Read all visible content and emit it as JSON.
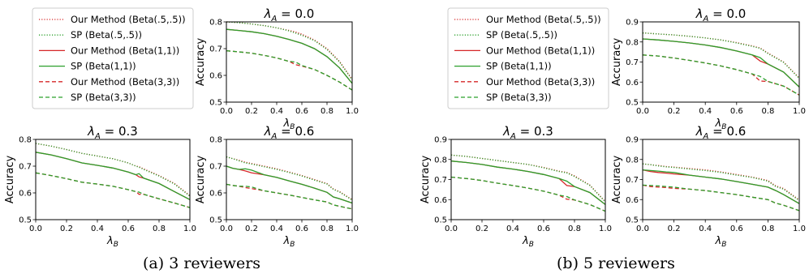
{
  "figure": {
    "captions": [
      "(a) 3 reviewers",
      "(b) 5 reviewers"
    ]
  },
  "legend": {
    "entries": [
      {
        "label": "Our Method (Beta(.5,.5))",
        "color": "#d62728",
        "style": "dotted"
      },
      {
        "label": "SP (Beta(.5,.5))",
        "color": "#2ca02c",
        "style": "dotted"
      },
      {
        "label": "Our Method (Beta(1,1))",
        "color": "#d62728",
        "style": "solid"
      },
      {
        "label": "SP (Beta(1,1))",
        "color": "#2ca02c",
        "style": "solid"
      },
      {
        "label": "Our Method (Beta(3,3))",
        "color": "#d62728",
        "style": "dashed"
      },
      {
        "label": "SP (Beta(3,3))",
        "color": "#2ca02c",
        "style": "dashed"
      }
    ]
  },
  "colors": {
    "our_method": "#d62728",
    "sp": "#2ca02c"
  },
  "chart_data": [
    {
      "type": "line",
      "group": "3 reviewers",
      "title": "λA = 0.0",
      "xlabel": "λB",
      "ylabel": "Accuracy",
      "xlim": [
        0,
        1
      ],
      "ylim": [
        0.5,
        0.8
      ],
      "xticks": [
        "0.0",
        "0.2",
        "0.4",
        "0.6",
        "0.8",
        "1.0"
      ],
      "yticks": [
        "0.5",
        "0.6",
        "0.7",
        "0.8"
      ],
      "x": [
        0,
        0.1,
        0.2,
        0.3,
        0.4,
        0.5,
        0.55,
        0.6,
        0.7,
        0.8,
        0.9,
        1.0
      ],
      "series": [
        {
          "name": "Our Method (Beta(.5,.5))",
          "values": [
            0.8,
            0.797,
            0.792,
            0.786,
            0.778,
            0.768,
            0.762,
            0.754,
            0.732,
            0.7,
            0.652,
            0.585
          ]
        },
        {
          "name": "SP (Beta(.5,.5))",
          "values": [
            0.8,
            0.797,
            0.792,
            0.786,
            0.778,
            0.766,
            0.758,
            0.75,
            0.73,
            0.697,
            0.65,
            0.583
          ]
        },
        {
          "name": "Our Method (Beta(1,1))",
          "values": [
            0.772,
            0.768,
            0.763,
            0.756,
            0.746,
            0.734,
            0.727,
            0.72,
            0.7,
            0.67,
            0.628,
            0.57
          ]
        },
        {
          "name": "SP (Beta(1,1))",
          "values": [
            0.772,
            0.768,
            0.763,
            0.756,
            0.746,
            0.734,
            0.727,
            0.72,
            0.7,
            0.67,
            0.628,
            0.57
          ]
        },
        {
          "name": "Our Method (Beta(3,3))",
          "values": [
            0.692,
            0.688,
            0.683,
            0.675,
            0.665,
            0.652,
            0.64,
            0.635,
            0.622,
            0.6,
            0.575,
            0.545
          ]
        },
        {
          "name": "SP (Beta(3,3))",
          "values": [
            0.692,
            0.688,
            0.683,
            0.675,
            0.665,
            0.652,
            0.65,
            0.637,
            0.622,
            0.6,
            0.575,
            0.545
          ]
        }
      ]
    },
    {
      "type": "line",
      "group": "5 reviewers",
      "title": "λA = 0.0",
      "xlabel": "λB",
      "ylabel": "Accuracy",
      "xlim": [
        0,
        1
      ],
      "ylim": [
        0.5,
        0.9
      ],
      "xticks": [
        "0.0",
        "0.2",
        "0.4",
        "0.6",
        "0.8",
        "1.0"
      ],
      "yticks": [
        "0.5",
        "0.6",
        "0.7",
        "0.8",
        "0.9"
      ],
      "x": [
        0,
        0.1,
        0.2,
        0.3,
        0.4,
        0.5,
        0.6,
        0.7,
        0.75,
        0.8,
        0.9,
        1.0
      ],
      "series": [
        {
          "name": "Our Method (Beta(.5,.5))",
          "values": [
            0.845,
            0.84,
            0.835,
            0.828,
            0.82,
            0.81,
            0.797,
            0.78,
            0.77,
            0.745,
            0.7,
            0.62
          ]
        },
        {
          "name": "SP (Beta(.5,.5))",
          "values": [
            0.845,
            0.84,
            0.835,
            0.828,
            0.82,
            0.81,
            0.795,
            0.778,
            0.768,
            0.742,
            0.698,
            0.618
          ]
        },
        {
          "name": "Our Method (Beta(1,1))",
          "values": [
            0.815,
            0.81,
            0.803,
            0.795,
            0.785,
            0.772,
            0.755,
            0.735,
            0.705,
            0.69,
            0.65,
            0.575
          ]
        },
        {
          "name": "SP (Beta(1,1))",
          "values": [
            0.815,
            0.81,
            0.803,
            0.795,
            0.785,
            0.772,
            0.755,
            0.735,
            0.722,
            0.69,
            0.65,
            0.575
          ]
        },
        {
          "name": "Our Method (Beta(3,3))",
          "values": [
            0.735,
            0.73,
            0.72,
            0.708,
            0.695,
            0.68,
            0.662,
            0.64,
            0.605,
            0.603,
            0.58,
            0.535
          ]
        },
        {
          "name": "SP (Beta(3,3))",
          "values": [
            0.735,
            0.73,
            0.72,
            0.708,
            0.695,
            0.68,
            0.662,
            0.64,
            0.628,
            0.603,
            0.58,
            0.535
          ]
        }
      ]
    },
    {
      "type": "line",
      "group": "3 reviewers",
      "title": "λA = 0.3",
      "xlabel": "λB",
      "ylabel": "Accuracy",
      "xlim": [
        0,
        1
      ],
      "ylim": [
        0.5,
        0.8
      ],
      "xticks": [
        "0.0",
        "0.2",
        "0.4",
        "0.6",
        "0.8",
        "1.0"
      ],
      "yticks": [
        "0.5",
        "0.6",
        "0.7",
        "0.8"
      ],
      "x": [
        0,
        0.1,
        0.2,
        0.3,
        0.4,
        0.5,
        0.6,
        0.65,
        0.67,
        0.7,
        0.8,
        0.9,
        1.0
      ],
      "series": [
        {
          "name": "Our Method (Beta(.5,.5))",
          "values": [
            0.785,
            0.775,
            0.762,
            0.748,
            0.738,
            0.728,
            0.712,
            0.7,
            0.698,
            0.69,
            0.665,
            0.635,
            0.59
          ]
        },
        {
          "name": "SP (Beta(.5,.5))",
          "values": [
            0.785,
            0.775,
            0.762,
            0.748,
            0.738,
            0.728,
            0.712,
            0.7,
            0.696,
            0.688,
            0.663,
            0.633,
            0.588
          ]
        },
        {
          "name": "Our Method (Beta(1,1))",
          "values": [
            0.752,
            0.742,
            0.728,
            0.712,
            0.703,
            0.693,
            0.678,
            0.668,
            0.66,
            0.655,
            0.635,
            0.605,
            0.575
          ]
        },
        {
          "name": "SP (Beta(1,1))",
          "values": [
            0.752,
            0.742,
            0.728,
            0.712,
            0.703,
            0.693,
            0.678,
            0.668,
            0.672,
            0.655,
            0.635,
            0.605,
            0.575
          ]
        },
        {
          "name": "Our Method (Beta(3,3))",
          "values": [
            0.675,
            0.665,
            0.653,
            0.64,
            0.633,
            0.625,
            0.612,
            0.605,
            0.595,
            0.595,
            0.578,
            0.562,
            0.545
          ]
        },
        {
          "name": "SP (Beta(3,3))",
          "values": [
            0.675,
            0.665,
            0.653,
            0.64,
            0.633,
            0.625,
            0.612,
            0.605,
            0.603,
            0.595,
            0.578,
            0.562,
            0.545
          ]
        }
      ]
    },
    {
      "type": "line",
      "group": "3 reviewers",
      "title": "λA = 0.6",
      "xlabel": "λB",
      "ylabel": "Accuracy",
      "xlim": [
        0,
        1
      ],
      "ylim": [
        0.5,
        0.8
      ],
      "xticks": [
        "0.0",
        "0.2",
        "0.4",
        "0.6",
        "0.8",
        "1.0"
      ],
      "yticks": [
        "0.5",
        "0.6",
        "0.7",
        "0.8"
      ],
      "x": [
        0,
        0.05,
        0.1,
        0.15,
        0.2,
        0.3,
        0.4,
        0.5,
        0.6,
        0.7,
        0.8,
        0.85,
        0.9,
        1.0
      ],
      "series": [
        {
          "name": "Our Method (Beta(.5,.5))",
          "values": [
            0.735,
            0.728,
            0.722,
            0.715,
            0.71,
            0.7,
            0.69,
            0.678,
            0.665,
            0.65,
            0.635,
            0.615,
            0.605,
            0.575
          ]
        },
        {
          "name": "SP (Beta(.5,.5))",
          "values": [
            0.735,
            0.728,
            0.72,
            0.712,
            0.708,
            0.698,
            0.688,
            0.676,
            0.663,
            0.648,
            0.633,
            0.613,
            0.603,
            0.573
          ]
        },
        {
          "name": "Our Method (Beta(1,1))",
          "values": [
            0.7,
            0.692,
            0.688,
            0.682,
            0.675,
            0.668,
            0.658,
            0.645,
            0.632,
            0.618,
            0.602,
            0.585,
            0.578,
            0.562
          ]
        },
        {
          "name": "SP (Beta(1,1))",
          "values": [
            0.7,
            0.692,
            0.688,
            0.69,
            0.685,
            0.668,
            0.658,
            0.645,
            0.632,
            0.618,
            0.602,
            0.585,
            0.578,
            0.562
          ]
        },
        {
          "name": "Our Method (Beta(3,3))",
          "values": [
            0.632,
            0.628,
            0.625,
            0.62,
            0.616,
            0.608,
            0.6,
            0.592,
            0.583,
            0.574,
            0.566,
            0.555,
            0.55,
            0.54
          ]
        },
        {
          "name": "SP (Beta(3,3))",
          "values": [
            0.632,
            0.628,
            0.625,
            0.625,
            0.622,
            0.608,
            0.6,
            0.592,
            0.583,
            0.574,
            0.566,
            0.555,
            0.55,
            0.54
          ]
        }
      ]
    },
    {
      "type": "line",
      "group": "5 reviewers",
      "title": "λA = 0.3",
      "xlabel": "λB",
      "ylabel": "Accuracy",
      "xlim": [
        0,
        1
      ],
      "ylim": [
        0.5,
        0.9
      ],
      "xticks": [
        "0.0",
        "0.2",
        "0.4",
        "0.6",
        "0.8",
        "1.0"
      ],
      "yticks": [
        "0.5",
        "0.6",
        "0.7",
        "0.8",
        "0.9"
      ],
      "x": [
        0,
        0.1,
        0.2,
        0.3,
        0.4,
        0.5,
        0.6,
        0.7,
        0.75,
        0.8,
        0.9,
        1.0
      ],
      "series": [
        {
          "name": "Our Method (Beta(.5,.5))",
          "values": [
            0.822,
            0.815,
            0.805,
            0.795,
            0.785,
            0.775,
            0.76,
            0.742,
            0.735,
            0.718,
            0.672,
            0.59
          ]
        },
        {
          "name": "SP (Beta(.5,.5))",
          "values": [
            0.822,
            0.815,
            0.805,
            0.795,
            0.785,
            0.775,
            0.758,
            0.74,
            0.733,
            0.715,
            0.67,
            0.588
          ]
        },
        {
          "name": "Our Method (Beta(1,1))",
          "values": [
            0.792,
            0.785,
            0.775,
            0.762,
            0.752,
            0.74,
            0.725,
            0.705,
            0.67,
            0.665,
            0.635,
            0.575
          ]
        },
        {
          "name": "SP (Beta(1,1))",
          "values": [
            0.792,
            0.785,
            0.775,
            0.762,
            0.752,
            0.74,
            0.725,
            0.705,
            0.692,
            0.665,
            0.635,
            0.575
          ]
        },
        {
          "name": "Our Method (Beta(3,3))",
          "values": [
            0.712,
            0.705,
            0.695,
            0.682,
            0.67,
            0.657,
            0.642,
            0.622,
            0.602,
            0.598,
            0.575,
            0.542
          ]
        },
        {
          "name": "SP (Beta(3,3))",
          "values": [
            0.712,
            0.705,
            0.695,
            0.682,
            0.67,
            0.657,
            0.642,
            0.622,
            0.615,
            0.598,
            0.575,
            0.542
          ]
        }
      ]
    },
    {
      "type": "line",
      "group": "5 reviewers",
      "title": "λA = 0.6",
      "xlabel": "λB",
      "ylabel": "Accuracy",
      "xlim": [
        0,
        1
      ],
      "ylim": [
        0.5,
        0.9
      ],
      "xticks": [
        "0.0",
        "0.2",
        "0.4",
        "0.6",
        "0.8",
        "1.0"
      ],
      "yticks": [
        "0.5",
        "0.6",
        "0.7",
        "0.8",
        "0.9"
      ],
      "x": [
        0,
        0.05,
        0.1,
        0.15,
        0.2,
        0.3,
        0.4,
        0.5,
        0.6,
        0.7,
        0.8,
        0.85,
        0.9,
        1.0
      ],
      "series": [
        {
          "name": "Our Method (Beta(.5,.5))",
          "values": [
            0.778,
            0.774,
            0.77,
            0.765,
            0.762,
            0.755,
            0.748,
            0.738,
            0.725,
            0.712,
            0.695,
            0.668,
            0.655,
            0.598
          ]
        },
        {
          "name": "SP (Beta(.5,.5))",
          "values": [
            0.778,
            0.774,
            0.768,
            0.763,
            0.76,
            0.752,
            0.745,
            0.735,
            0.722,
            0.71,
            0.692,
            0.665,
            0.652,
            0.595
          ]
        },
        {
          "name": "Our Method (Beta(1,1))",
          "values": [
            0.748,
            0.74,
            0.735,
            0.732,
            0.728,
            0.722,
            0.712,
            0.703,
            0.69,
            0.676,
            0.662,
            0.645,
            0.625,
            0.58
          ]
        },
        {
          "name": "SP (Beta(1,1))",
          "values": [
            0.748,
            0.745,
            0.742,
            0.738,
            0.735,
            0.722,
            0.712,
            0.703,
            0.69,
            0.676,
            0.662,
            0.645,
            0.625,
            0.58
          ]
        },
        {
          "name": "Our Method (Beta(3,3))",
          "values": [
            0.672,
            0.665,
            0.662,
            0.66,
            0.656,
            0.652,
            0.645,
            0.635,
            0.625,
            0.612,
            0.6,
            0.582,
            0.572,
            0.545
          ]
        },
        {
          "name": "SP (Beta(3,3))",
          "values": [
            0.672,
            0.67,
            0.668,
            0.665,
            0.662,
            0.652,
            0.645,
            0.635,
            0.625,
            0.612,
            0.6,
            0.582,
            0.572,
            0.545
          ]
        }
      ]
    }
  ]
}
